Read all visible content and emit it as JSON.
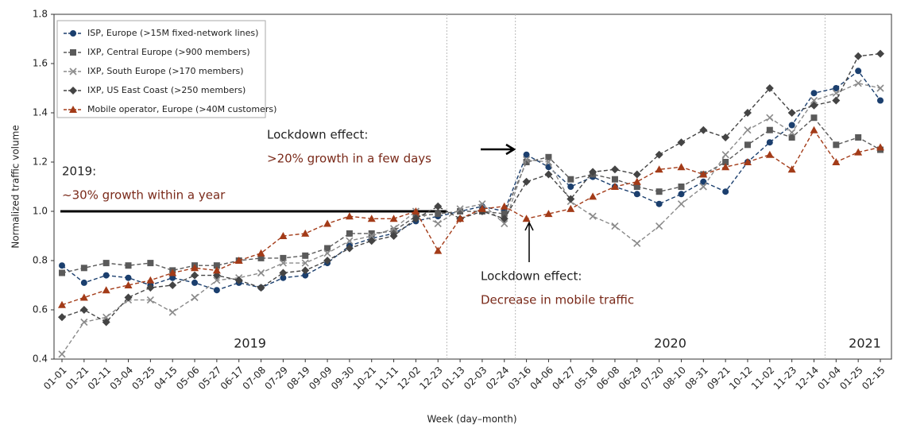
{
  "chart_data": {
    "type": "line",
    "x_label": "Week (day–month)",
    "y_label": "Normalized traffic volume",
    "categories": [
      "01-01",
      "01-21",
      "02-11",
      "03-04",
      "03-25",
      "04-15",
      "05-06",
      "05-27",
      "06-17",
      "07-08",
      "07-29",
      "08-19",
      "09-09",
      "09-30",
      "10-21",
      "11-11",
      "12-02",
      "12-23",
      "01-13",
      "02-03",
      "02-24",
      "03-16",
      "04-06",
      "04-27",
      "05-18",
      "06-08",
      "06-29",
      "07-20",
      "08-10",
      "08-31",
      "09-21",
      "10-12",
      "11-02",
      "11-23",
      "12-14",
      "01-04",
      "01-25",
      "02-15"
    ],
    "series": [
      {
        "name": "ISP, Europe (>15M fixed-network lines)",
        "color": "#1b3f6e",
        "marker": "circle",
        "values": [
          0.78,
          0.71,
          0.74,
          0.73,
          0.7,
          0.73,
          0.71,
          0.68,
          0.71,
          0.69,
          0.73,
          0.74,
          0.79,
          0.86,
          0.89,
          0.91,
          0.96,
          0.98,
          1.0,
          1.02,
          1.0,
          1.23,
          1.18,
          1.1,
          1.14,
          1.1,
          1.07,
          1.03,
          1.07,
          1.12,
          1.08,
          1.2,
          1.28,
          1.35,
          1.48,
          1.5,
          1.57,
          1.45
        ]
      },
      {
        "name": "IXP, Central Europe (>900 members)",
        "color": "#5a5a5a",
        "marker": "square",
        "values": [
          0.75,
          0.77,
          0.79,
          0.78,
          0.79,
          0.76,
          0.78,
          0.78,
          0.8,
          0.81,
          0.81,
          0.82,
          0.85,
          0.91,
          0.91,
          0.92,
          0.98,
          0.99,
          1.0,
          1.0,
          0.99,
          1.2,
          1.22,
          1.13,
          1.15,
          1.13,
          1.1,
          1.08,
          1.1,
          1.15,
          1.2,
          1.27,
          1.33,
          1.3,
          1.38,
          1.27,
          1.3,
          1.25
        ]
      },
      {
        "name": "IXP, South Europe   (>170 members)",
        "color": "#8a8a8a",
        "marker": "cross",
        "values": [
          0.42,
          0.55,
          0.57,
          0.64,
          0.64,
          0.59,
          0.65,
          0.72,
          0.73,
          0.75,
          0.79,
          0.79,
          0.83,
          0.88,
          0.9,
          0.93,
          1.0,
          0.95,
          1.01,
          1.03,
          0.95,
          1.21,
          1.2,
          1.04,
          0.98,
          0.94,
          0.87,
          0.94,
          1.03,
          1.1,
          1.23,
          1.33,
          1.38,
          1.32,
          1.45,
          1.48,
          1.52,
          1.5
        ]
      },
      {
        "name": "IXP, US East Coast  (>250 members)",
        "color": "#444444",
        "marker": "diamond",
        "values": [
          0.57,
          0.6,
          0.55,
          0.65,
          0.69,
          0.7,
          0.74,
          0.74,
          0.72,
          0.69,
          0.75,
          0.76,
          0.8,
          0.85,
          0.88,
          0.9,
          0.97,
          1.02,
          0.97,
          1.0,
          0.97,
          1.12,
          1.15,
          1.05,
          1.16,
          1.17,
          1.15,
          1.23,
          1.28,
          1.33,
          1.3,
          1.4,
          1.5,
          1.4,
          1.43,
          1.45,
          1.63,
          1.64
        ]
      },
      {
        "name": "Mobile operator, Europe (>40M customers)",
        "color": "#a33b18",
        "marker": "triangle",
        "values": [
          0.62,
          0.65,
          0.68,
          0.7,
          0.72,
          0.75,
          0.77,
          0.76,
          0.8,
          0.83,
          0.9,
          0.91,
          0.95,
          0.98,
          0.97,
          0.97,
          1.0,
          0.84,
          0.97,
          1.01,
          1.02,
          0.97,
          0.99,
          1.01,
          1.06,
          1.1,
          1.12,
          1.17,
          1.18,
          1.15,
          1.18,
          1.2,
          1.23,
          1.17,
          1.33,
          1.2,
          1.24,
          1.26
        ]
      }
    ],
    "ylim": [
      0.4,
      1.8
    ],
    "yticks": [
      0.4,
      0.6,
      0.8,
      {
        "value": 1,
        "label": "1.0"
      },
      1.2,
      1.4,
      1.6,
      1.8
    ],
    "reference_line": 1,
    "legend": "top-left",
    "years": [
      "2019",
      "2020",
      "2021"
    ],
    "annotations": [
      {
        "title": "Lockdown effect:",
        "text": ">20% growth in a few days"
      },
      {
        "title": "2019:",
        "text": "~30% growth within a year"
      },
      {
        "title": "Lockdown effect:",
        "text": "Decrease in mobile traffic"
      }
    ]
  }
}
